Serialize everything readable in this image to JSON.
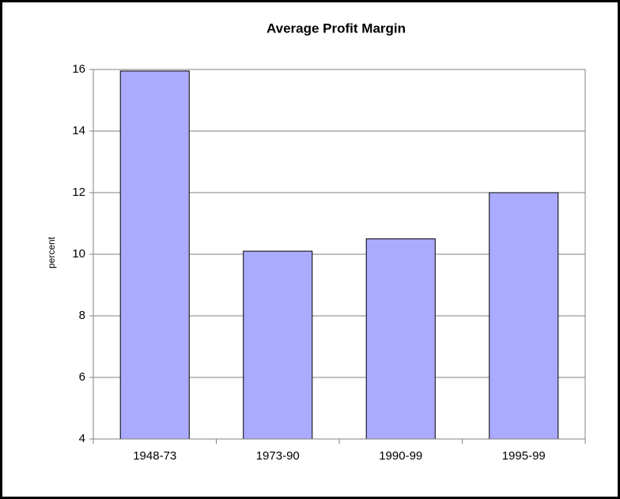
{
  "chart_data": {
    "type": "bar",
    "title": "Average Profit Margin",
    "y_label": "percent",
    "categories": [
      "1948-73",
      "1973-90",
      "1990-99",
      "1995-99"
    ],
    "values": [
      15.95,
      10.1,
      10.5,
      12.0
    ],
    "color": "#aaaaff",
    "ylim": [
      4,
      16
    ],
    "yticks": [
      4,
      6,
      8,
      10,
      12,
      14,
      16
    ],
    "grid": true
  }
}
